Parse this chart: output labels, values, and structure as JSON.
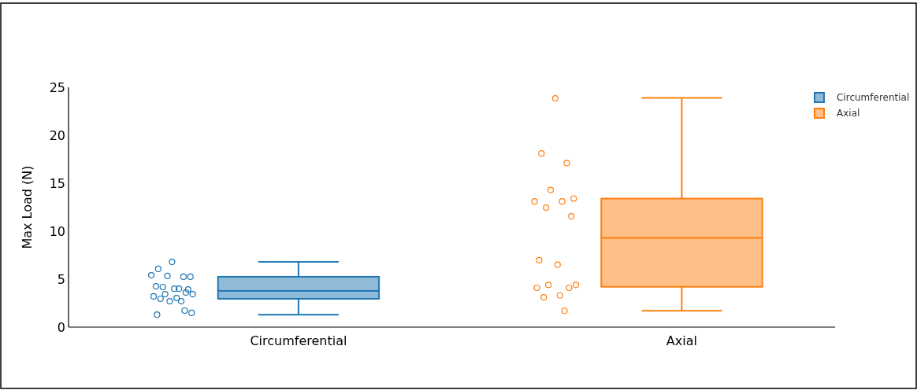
{
  "chart_data": {
    "type": "box",
    "ylabel": "Max Load (N)",
    "categories": [
      "Circumferential",
      "Axial"
    ],
    "ylim": [
      0,
      25
    ],
    "yticks": [
      0,
      5,
      10,
      15,
      20,
      25
    ],
    "grid": false,
    "legend": "top right",
    "marker": "circle",
    "series": [
      {
        "name": "Circumferential",
        "color": "#1f77b4",
        "boxes": [
          {
            "low": 1.3,
            "q1": 2.95,
            "median": 3.77,
            "q3": 5.25,
            "high": 6.8
          },
          null
        ]
      },
      {
        "name": "Axial",
        "color": "#ff7f0e",
        "boxes": [
          null,
          {
            "low": 1.7,
            "q1": 4.2,
            "median": 9.3,
            "q3": 13.4,
            "high": 23.9
          }
        ]
      },
      {
        "type": "scatter",
        "color": "#1f77b4",
        "x": [
          "Circumferential",
          "Circumferential",
          "Circumferential",
          "Circumferential",
          "Circumferential",
          "Circumferential",
          "Circumferential",
          "Circumferential",
          "Circumferential",
          "Circumferential",
          "Circumferential",
          "Circumferential",
          "Circumferential",
          "Circumferential",
          "Circumferential",
          "Circumferential",
          "Circumferential",
          "Circumferential",
          "Circumferential",
          "Circumferential",
          "Circumferential",
          "Circumferential"
        ],
        "values": [
          6.8,
          6.07,
          5.25,
          5.33,
          5.25,
          5.4,
          4.0,
          4.18,
          3.93,
          4.26,
          4.0,
          3.44,
          3.44,
          3.6,
          3.2,
          3.03,
          2.95,
          2.7,
          2.7,
          1.48,
          1.3,
          1.72
        ]
      },
      {
        "type": "scatter",
        "color": "#ff7f0e",
        "x": [
          "Axial",
          "Axial",
          "Axial",
          "Axial",
          "Axial",
          "Axial",
          "Axial",
          "Axial",
          "Axial",
          "Axial",
          "Axial",
          "Axial",
          "Axial",
          "Axial",
          "Axial",
          "Axial",
          "Axial",
          "Axial"
        ],
        "values": [
          23.85,
          18.1,
          17.1,
          14.3,
          13.4,
          13.1,
          13.1,
          12.45,
          11.55,
          6.97,
          6.5,
          4.4,
          4.4,
          4.1,
          4.1,
          3.3,
          3.1,
          1.7
        ]
      }
    ]
  }
}
